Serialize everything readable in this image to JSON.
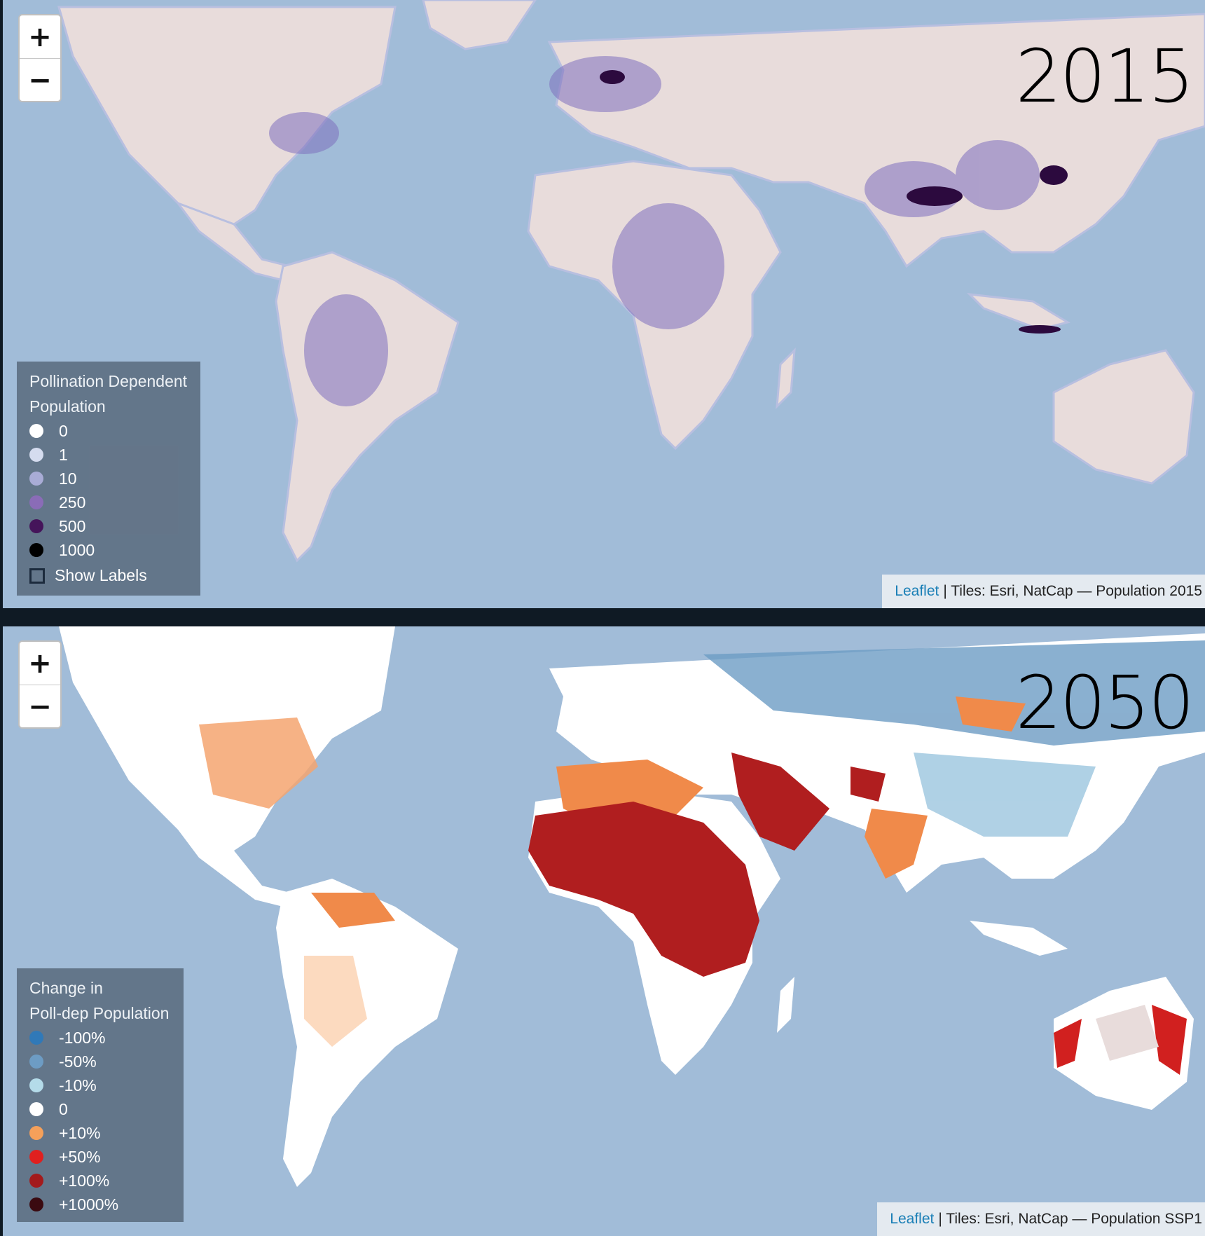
{
  "maps": [
    {
      "year": "2015",
      "legend": {
        "title_line1": "Pollination Dependent",
        "title_line2": "Population",
        "items": [
          {
            "label": "0",
            "color": "#ffffff"
          },
          {
            "label": "1",
            "color": "#d5dcef"
          },
          {
            "label": "10",
            "color": "#a9acd6"
          },
          {
            "label": "250",
            "color": "#8a6cb7"
          },
          {
            "label": "500",
            "color": "#45145a"
          },
          {
            "label": "1000",
            "color": "#000000"
          }
        ],
        "checkbox_label": "Show Labels"
      },
      "attribution": {
        "link": "Leaflet",
        "text": "| Tiles: Esri, NatCap — Population 2015"
      }
    },
    {
      "year": "2050",
      "legend": {
        "title_line1": "Change in",
        "title_line2": "Poll-dep Population",
        "items": [
          {
            "label": "-100%",
            "color": "#3079b8"
          },
          {
            "label": "-50%",
            "color": "#6d9cc4"
          },
          {
            "label": "-10%",
            "color": "#b4dbe9"
          },
          {
            "label": "0",
            "color": "#ffffff"
          },
          {
            "label": "+10%",
            "color": "#f5a05a"
          },
          {
            "label": "+50%",
            "color": "#e0201f"
          },
          {
            "label": "+100%",
            "color": "#a31a1c"
          },
          {
            "label": "+1000%",
            "color": "#3a0a10"
          }
        ]
      },
      "attribution": {
        "link": "Leaflet",
        "text": "| Tiles: Esri, NatCap — Population SSP1"
      }
    }
  ],
  "controls": {
    "zoom_in": "+",
    "zoom_out": "−"
  },
  "colors": {
    "ocean": "#a1bcd8",
    "land": "#e8dcdb"
  }
}
